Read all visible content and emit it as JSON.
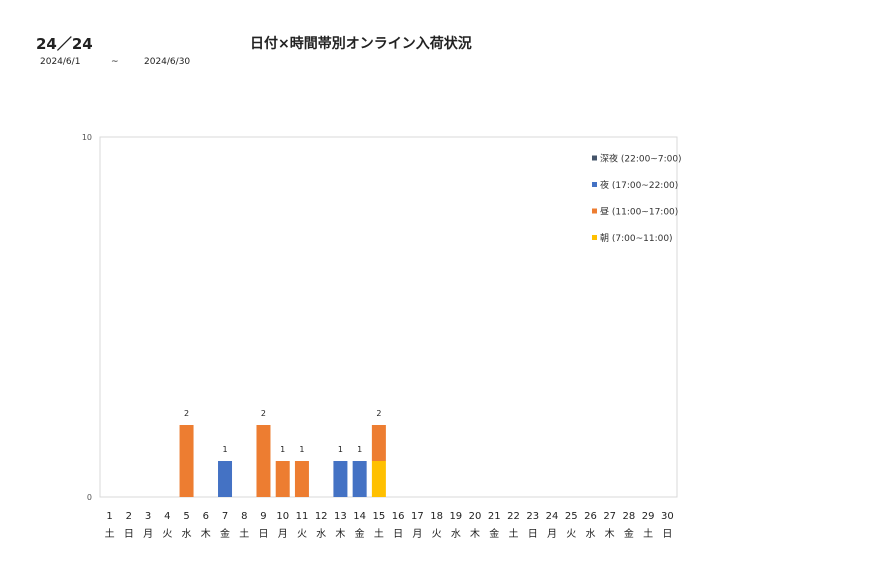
{
  "header": {
    "code": "24／24",
    "title": "日付×時間帯別オンライン入荷状況",
    "date_from": "2024/6/1",
    "date_sep": "~",
    "date_to": "2024/6/30"
  },
  "chart_data": {
    "type": "bar",
    "stacked": true,
    "title": "",
    "xlabel": "",
    "ylabel": "",
    "ylim": [
      0,
      10
    ],
    "yticks": [
      0,
      10
    ],
    "grid": false,
    "legend_position": "top-right",
    "categories": [
      "1",
      "2",
      "3",
      "4",
      "5",
      "6",
      "7",
      "8",
      "9",
      "10",
      "11",
      "12",
      "13",
      "14",
      "15",
      "16",
      "17",
      "18",
      "19",
      "20",
      "21",
      "22",
      "23",
      "24",
      "25",
      "26",
      "27",
      "28",
      "29",
      "30"
    ],
    "weekdays": [
      "土",
      "日",
      "月",
      "火",
      "水",
      "木",
      "金",
      "土",
      "日",
      "月",
      "火",
      "水",
      "木",
      "金",
      "土",
      "日",
      "月",
      "火",
      "水",
      "木",
      "金",
      "土",
      "日",
      "月",
      "火",
      "水",
      "木",
      "金",
      "土",
      "日"
    ],
    "series": [
      {
        "name": "朝 (7:00~11:00)",
        "color": "#FFC000",
        "values": [
          0,
          0,
          0,
          0,
          0,
          0,
          0,
          0,
          0,
          0,
          0,
          0,
          0,
          0,
          1,
          0,
          0,
          0,
          0,
          0,
          0,
          0,
          0,
          0,
          0,
          0,
          0,
          0,
          0,
          0
        ]
      },
      {
        "name": "昼 (11:00~17:00)",
        "color": "#ED7D31",
        "values": [
          0,
          0,
          0,
          0,
          2,
          0,
          0,
          0,
          2,
          1,
          1,
          0,
          0,
          0,
          1,
          0,
          0,
          0,
          0,
          0,
          0,
          0,
          0,
          0,
          0,
          0,
          0,
          0,
          0,
          0
        ]
      },
      {
        "name": "夜 (17:00~22:00)",
        "color": "#4472C4",
        "values": [
          0,
          0,
          0,
          0,
          0,
          0,
          1,
          0,
          0,
          0,
          0,
          0,
          1,
          1,
          0,
          0,
          0,
          0,
          0,
          0,
          0,
          0,
          0,
          0,
          0,
          0,
          0,
          0,
          0,
          0
        ]
      },
      {
        "name": "深夜 (22:00~7:00)",
        "color": "#44546A",
        "values": [
          0,
          0,
          0,
          0,
          0,
          0,
          0,
          0,
          0,
          0,
          0,
          0,
          0,
          0,
          0,
          0,
          0,
          0,
          0,
          0,
          0,
          0,
          0,
          0,
          0,
          0,
          0,
          0,
          0,
          0
        ]
      }
    ],
    "totals": [
      "",
      "",
      "",
      "",
      "2",
      "",
      "1",
      "",
      "2",
      "1",
      "1",
      "",
      "1",
      "1",
      "2",
      "",
      "",
      "",
      "",
      "",
      "",
      "",
      "",
      "",
      "",
      "",
      "",
      "",
      "",
      ""
    ]
  }
}
